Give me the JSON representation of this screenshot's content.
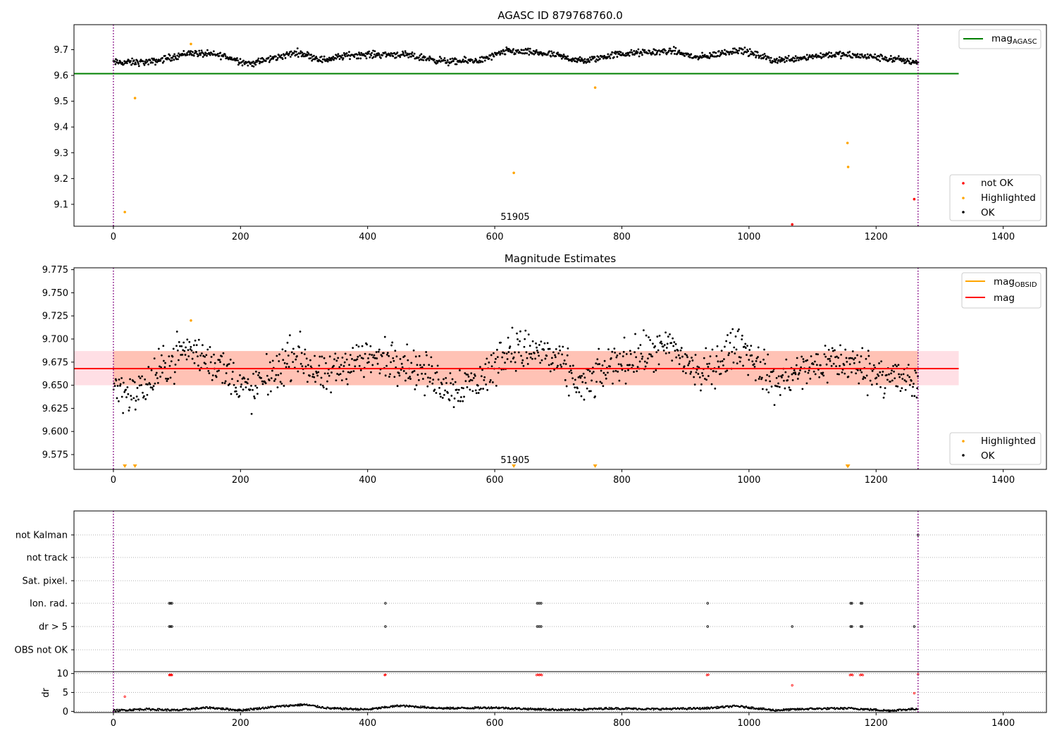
{
  "chart_data": [
    {
      "type": "scatter",
      "title": "AGASC ID 879768760.0",
      "xlim": [
        -62,
        1468
      ],
      "ylim": [
        9.015,
        9.797
      ],
      "xticks": [
        0,
        200,
        400,
        600,
        800,
        1000,
        1200,
        1400
      ],
      "yticks": [
        9.1,
        9.2,
        9.3,
        9.4,
        9.5,
        9.6,
        9.7
      ],
      "ytick_labels": [
        "9.1",
        "9.2",
        "9.3",
        "9.4",
        "9.5",
        "9.6",
        "9.7"
      ],
      "vlines": [
        0,
        1266
      ],
      "hline": {
        "y": 9.607,
        "x_range": [
          -62,
          1330
        ],
        "color": "#008000",
        "name": "mag",
        "name_sub": "AGASC"
      },
      "annotation": {
        "text": "51905",
        "x": 630,
        "y": 9.03
      },
      "legend_position": "top-right / bottom-right",
      "legend_bottom": [
        {
          "label": "not OK",
          "color": "#ff0000"
        },
        {
          "label": "Highlighted",
          "color": "#ffa500"
        },
        {
          "label": "OK",
          "color": "#000000"
        }
      ],
      "series": [
        {
          "name": "Highlighted",
          "color": "#ffa500",
          "x": [
            18,
            34,
            122,
            630,
            758,
            1155,
            1156
          ],
          "y": [
            9.07,
            9.512,
            9.722,
            9.222,
            9.553,
            9.338,
            9.245
          ]
        },
        {
          "name": "not OK",
          "color": "#ff0000",
          "x": [
            1068,
            1260
          ],
          "y": [
            9.022,
            9.12
          ]
        }
      ],
      "ok_band": {
        "x_range": [
          0,
          1266
        ],
        "segments": [
          {
            "x": 0,
            "y": 9.65
          },
          {
            "x": 60,
            "y": 9.652
          },
          {
            "x": 120,
            "y": 9.688
          },
          {
            "x": 170,
            "y": 9.678
          },
          {
            "x": 215,
            "y": 9.645
          },
          {
            "x": 290,
            "y": 9.69
          },
          {
            "x": 330,
            "y": 9.66
          },
          {
            "x": 375,
            "y": 9.68
          },
          {
            "x": 450,
            "y": 9.682
          },
          {
            "x": 530,
            "y": 9.652
          },
          {
            "x": 580,
            "y": 9.66
          },
          {
            "x": 620,
            "y": 9.695
          },
          {
            "x": 680,
            "y": 9.685
          },
          {
            "x": 740,
            "y": 9.655
          },
          {
            "x": 790,
            "y": 9.682
          },
          {
            "x": 880,
            "y": 9.695
          },
          {
            "x": 920,
            "y": 9.668
          },
          {
            "x": 985,
            "y": 9.7
          },
          {
            "x": 1040,
            "y": 9.658
          },
          {
            "x": 1130,
            "y": 9.682
          },
          {
            "x": 1190,
            "y": 9.673
          },
          {
            "x": 1266,
            "y": 9.652
          }
        ],
        "spread": 0.012
      }
    },
    {
      "type": "scatter",
      "title": "Magnitude Estimates",
      "xlim": [
        -62,
        1468
      ],
      "ylim": [
        9.559,
        9.777
      ],
      "xticks": [
        0,
        200,
        400,
        600,
        800,
        1000,
        1200,
        1400
      ],
      "yticks": [
        9.575,
        9.6,
        9.625,
        9.65,
        9.675,
        9.7,
        9.725,
        9.75,
        9.775
      ],
      "ytick_labels": [
        "9.575",
        "9.600",
        "9.625",
        "9.650",
        "9.675",
        "9.700",
        "9.725",
        "9.750",
        "9.775"
      ],
      "vlines": [
        0,
        1266
      ],
      "mag_line": {
        "y": 9.668,
        "x_range": [
          -62,
          1330
        ],
        "color": "#ff0000",
        "name": "mag"
      },
      "mag_obsid_band": {
        "y_range": [
          9.65,
          9.687
        ],
        "x_range": [
          -62,
          1330
        ],
        "color": "#ffa500",
        "name": "mag",
        "name_sub": "OBSID"
      },
      "annotation": {
        "text": "51905",
        "x": 630,
        "y": 9.564
      },
      "legend_position": "top-right / bottom-right",
      "legend_bottom": [
        {
          "label": "Highlighted",
          "color": "#ffa500"
        },
        {
          "label": "OK",
          "color": "#000000"
        }
      ],
      "highlighted_points": {
        "x": [
          122
        ],
        "y": [
          9.72
        ]
      },
      "triangle_markers": {
        "x": [
          18,
          34,
          630,
          758,
          1155,
          1156
        ],
        "color": "#ffa500"
      },
      "ok_band": {
        "x_range": [
          0,
          1266
        ],
        "segments": [
          {
            "x": 0,
            "y": 9.65
          },
          {
            "x": 35,
            "y": 9.64
          },
          {
            "x": 60,
            "y": 9.655
          },
          {
            "x": 110,
            "y": 9.69
          },
          {
            "x": 160,
            "y": 9.675
          },
          {
            "x": 215,
            "y": 9.642
          },
          {
            "x": 290,
            "y": 9.685
          },
          {
            "x": 330,
            "y": 9.655
          },
          {
            "x": 375,
            "y": 9.678
          },
          {
            "x": 450,
            "y": 9.678
          },
          {
            "x": 530,
            "y": 9.648
          },
          {
            "x": 580,
            "y": 9.655
          },
          {
            "x": 620,
            "y": 9.69
          },
          {
            "x": 680,
            "y": 9.685
          },
          {
            "x": 740,
            "y": 9.648
          },
          {
            "x": 790,
            "y": 9.675
          },
          {
            "x": 880,
            "y": 9.69
          },
          {
            "x": 925,
            "y": 9.66
          },
          {
            "x": 985,
            "y": 9.695
          },
          {
            "x": 1040,
            "y": 9.652
          },
          {
            "x": 1130,
            "y": 9.678
          },
          {
            "x": 1200,
            "y": 9.665
          },
          {
            "x": 1266,
            "y": 9.65
          }
        ],
        "spread": 0.02
      }
    },
    {
      "type": "scatter",
      "xlim": [
        -62,
        1468
      ],
      "xticks": [
        0,
        200,
        400,
        600,
        800,
        1000,
        1200,
        1400
      ],
      "vlines": [
        0,
        1266
      ],
      "flag_rows": [
        "not Kalman",
        "not track",
        "Sat. pixel.",
        "Ion. rad.",
        "dr > 5",
        "OBS not OK"
      ],
      "flag_points": {
        "Ion. rad.": [
          88,
          90,
          92,
          428,
          667,
          670,
          673,
          935,
          1160,
          1162,
          1176,
          1178
        ],
        "dr > 5": [
          88,
          90,
          92,
          428,
          667,
          670,
          673,
          935,
          1068,
          1160,
          1162,
          1176,
          1178,
          1260
        ],
        "not Kalman": [
          1266
        ]
      },
      "dr_panel": {
        "ylabel": "dr",
        "ylim": [
          -0.3,
          10.5
        ],
        "yticks": [
          0,
          5,
          10
        ],
        "ytick_labels": [
          "0",
          "5",
          "10"
        ],
        "red_points": {
          "x": [
            18,
            88,
            89,
            90,
            91,
            92,
            427,
            428,
            666,
            668,
            670,
            672,
            674,
            934,
            936,
            1068,
            1159,
            1161,
            1163,
            1175,
            1177,
            1179,
            1260,
            1266
          ],
          "y": [
            3.9,
            9.6,
            9.7,
            9.6,
            9.7,
            9.6,
            9.6,
            9.7,
            9.6,
            9.7,
            9.6,
            9.7,
            9.6,
            9.6,
            9.7,
            6.9,
            9.6,
            9.7,
            9.6,
            9.6,
            9.7,
            9.6,
            4.8,
            9.8
          ]
        },
        "ok_trace": [
          {
            "x": 0,
            "y": 0.2
          },
          {
            "x": 50,
            "y": 0.6
          },
          {
            "x": 100,
            "y": 0.3
          },
          {
            "x": 150,
            "y": 1.0
          },
          {
            "x": 200,
            "y": 0.3
          },
          {
            "x": 260,
            "y": 1.3
          },
          {
            "x": 300,
            "y": 1.8
          },
          {
            "x": 340,
            "y": 0.8
          },
          {
            "x": 400,
            "y": 0.5
          },
          {
            "x": 450,
            "y": 1.5
          },
          {
            "x": 520,
            "y": 0.8
          },
          {
            "x": 600,
            "y": 1.0
          },
          {
            "x": 660,
            "y": 0.6
          },
          {
            "x": 720,
            "y": 0.4
          },
          {
            "x": 780,
            "y": 0.8
          },
          {
            "x": 850,
            "y": 0.6
          },
          {
            "x": 930,
            "y": 0.8
          },
          {
            "x": 980,
            "y": 1.4
          },
          {
            "x": 1040,
            "y": 0.3
          },
          {
            "x": 1100,
            "y": 0.7
          },
          {
            "x": 1160,
            "y": 0.8
          },
          {
            "x": 1220,
            "y": 0.2
          },
          {
            "x": 1266,
            "y": 0.7
          }
        ]
      }
    }
  ]
}
